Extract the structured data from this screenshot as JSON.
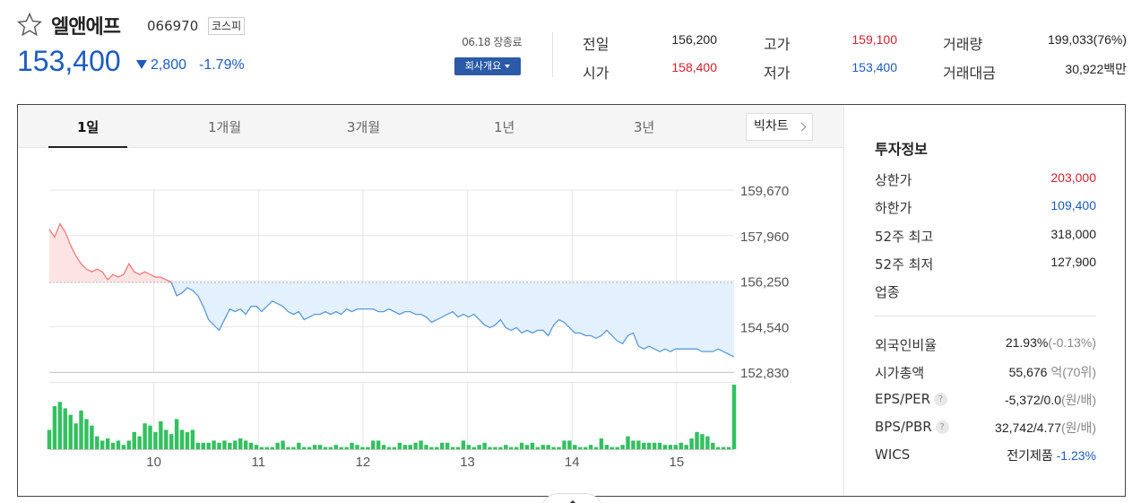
{
  "stock": {
    "name": "엘앤에프",
    "code": "066970",
    "market": "코스피",
    "price": "153,400",
    "change": "2,800",
    "change_rate": "-1.79%",
    "direction": "down"
  },
  "session": {
    "date_label": "06.18 장종료",
    "company_button": "회사개요"
  },
  "quotes": {
    "prev_close_label": "전일",
    "prev_close": "156,200",
    "high_label": "고가",
    "high": "159,100",
    "volume_label": "거래량",
    "volume": "199,033(76%)",
    "open_label": "시가",
    "open": "158,400",
    "low_label": "저가",
    "low": "153,400",
    "amount_label": "거래대금",
    "amount": "30,922백만"
  },
  "tabs": [
    {
      "label": "1일",
      "active": true
    },
    {
      "label": "1개월",
      "active": false
    },
    {
      "label": "3개월",
      "active": false
    },
    {
      "label": "1년",
      "active": false
    },
    {
      "label": "3년",
      "active": false
    }
  ],
  "candle_button": "빅차트",
  "chart_data": {
    "type": "line",
    "title": "",
    "prev_close": 156200,
    "y_ticks": [
      159670,
      157960,
      156250,
      154540,
      152830
    ],
    "y_tick_labels": [
      "159,670",
      "157,960",
      "156,250",
      "154,540",
      "152,830"
    ],
    "ylim": [
      152830,
      159670
    ],
    "x_tick_labels": [
      "10",
      "11",
      "12",
      "13",
      "14",
      "15"
    ],
    "x_ticks_hours": [
      10,
      11,
      12,
      13,
      14,
      15
    ],
    "x_range_hours": [
      9,
      15.55
    ],
    "grid": true,
    "up_color": "#f07a7a",
    "down_color": "#5a9ad8",
    "volume_color": "#33c060",
    "prices": [
      158200,
      157900,
      158400,
      158100,
      157600,
      157200,
      156900,
      156700,
      156600,
      156700,
      156600,
      156300,
      156500,
      156400,
      156500,
      156900,
      156600,
      156500,
      156600,
      156500,
      156400,
      156400,
      156300,
      156200,
      155700,
      155800,
      156000,
      155900,
      155700,
      155300,
      154800,
      154600,
      154400,
      154800,
      155200,
      155100,
      155200,
      155000,
      155300,
      155300,
      155100,
      155300,
      155500,
      155400,
      155300,
      155100,
      155000,
      155100,
      154800,
      154900,
      155000,
      155000,
      155100,
      155000,
      155100,
      155000,
      155200,
      155100,
      155200,
      155200,
      155200,
      155200,
      155100,
      155100,
      155200,
      155100,
      155000,
      155100,
      155100,
      155000,
      155000,
      154900,
      154700,
      154800,
      154900,
      155000,
      155100,
      154900,
      155000,
      154900,
      155000,
      154800,
      154600,
      154500,
      154600,
      154800,
      154500,
      154400,
      154500,
      154300,
      154400,
      154300,
      154400,
      154400,
      154200,
      154600,
      154800,
      154700,
      154500,
      154300,
      154300,
      154200,
      154200,
      154100,
      154200,
      154400,
      154200,
      154000,
      153900,
      154200,
      154300,
      153800,
      153700,
      153800,
      153700,
      153600,
      153700,
      153600,
      153700,
      153700,
      153700,
      153700,
      153700,
      153600,
      153600,
      153600,
      153700,
      153600,
      153500,
      153400
    ],
    "volumes": [
      9,
      20,
      22,
      19,
      16,
      12,
      18,
      14,
      11,
      6,
      4,
      5,
      3,
      4,
      2,
      4,
      8,
      6,
      12,
      11,
      8,
      13,
      9,
      7,
      14,
      9,
      8,
      9,
      3,
      3,
      3,
      4,
      3,
      4,
      3,
      4,
      5,
      4,
      3,
      2,
      1,
      1,
      1,
      3,
      4,
      1,
      1,
      3,
      1,
      1,
      2,
      2,
      1,
      1,
      2,
      1,
      1,
      3,
      2,
      1,
      1,
      4,
      4,
      2,
      1,
      1,
      3,
      2,
      2,
      3,
      4,
      2,
      1,
      1,
      3,
      3,
      1,
      1,
      4,
      2,
      1,
      2,
      3,
      1,
      1,
      1,
      2,
      1,
      1,
      3,
      2,
      3,
      1,
      2,
      2,
      1,
      1,
      4,
      4,
      2,
      1,
      1,
      2,
      1,
      5,
      2,
      1,
      1,
      2,
      6,
      4,
      4,
      3,
      3,
      3,
      3,
      2,
      2,
      2,
      3,
      2,
      5,
      8,
      7,
      6,
      3,
      1,
      1,
      1,
      30
    ]
  },
  "invest": {
    "title": "투자정보",
    "rows": [
      {
        "label": "상한가",
        "value": "203,000",
        "color": "red"
      },
      {
        "label": "하한가",
        "value": "109,400",
        "color": "blue"
      },
      {
        "label": "52주 최고",
        "value": "318,000",
        "color": "dark"
      },
      {
        "label": "52주 최저",
        "value": "127,900",
        "color": "dark"
      },
      {
        "label": "업종",
        "value": "",
        "color": "dark"
      }
    ],
    "rows2": [
      {
        "label": "외국인비율",
        "value": "21.93%",
        "sub": "(-0.13%)",
        "help": false
      },
      {
        "label": "시가총액",
        "value": "55,676",
        "sub": "억(70위)",
        "help": false
      },
      {
        "label": "EPS/PER",
        "value": "-5,372/0.0",
        "sub": "(원/배)",
        "help": true
      },
      {
        "label": "BPS/PBR",
        "value": "32,742/4.77",
        "sub": "(원/배)",
        "help": true
      }
    ],
    "wics_label": "WICS",
    "wics_value": "전기제품",
    "wics_rate": "-1.23%",
    "help_glyph": "?"
  }
}
